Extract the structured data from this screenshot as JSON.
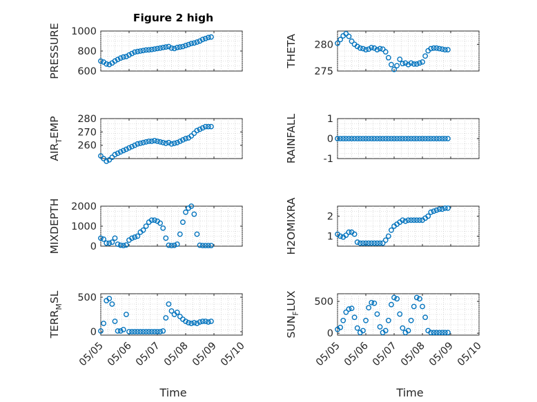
{
  "figure": {
    "title": "Figure 2 high",
    "x_axis_label": "Time"
  },
  "colors": {
    "marker": "#0072BD",
    "axes": "#262626",
    "grid": "#bdbdbd"
  },
  "chart_data": [
    {
      "id": "pressure",
      "type": "scatter",
      "ylabel": "PRESSURE",
      "ylim": [
        600,
        1000
      ],
      "yticks": [
        600,
        800,
        1000
      ],
      "ytick_labels": [
        "600",
        "800",
        "1000"
      ],
      "xlim": [
        0,
        5
      ],
      "xticks": [
        0,
        1,
        2,
        3,
        4,
        5
      ],
      "xtick_labels": [],
      "grid": true,
      "marker": "circle-open",
      "x": [
        0.0,
        0.1,
        0.2,
        0.3,
        0.4,
        0.5,
        0.6,
        0.7,
        0.8,
        0.9,
        1.0,
        1.1,
        1.2,
        1.3,
        1.4,
        1.5,
        1.6,
        1.7,
        1.8,
        1.9,
        2.0,
        2.1,
        2.2,
        2.3,
        2.4,
        2.5,
        2.6,
        2.7,
        2.8,
        2.9,
        3.0,
        3.1,
        3.2,
        3.3,
        3.4,
        3.5,
        3.6,
        3.7,
        3.8,
        3.9
      ],
      "y": [
        700,
        690,
        670,
        665,
        680,
        700,
        715,
        730,
        740,
        745,
        760,
        775,
        790,
        795,
        800,
        805,
        810,
        812,
        815,
        820,
        825,
        830,
        835,
        840,
        845,
        830,
        825,
        835,
        840,
        845,
        855,
        865,
        875,
        880,
        890,
        900,
        915,
        925,
        935,
        940
      ]
    },
    {
      "id": "theta",
      "type": "scatter",
      "ylabel": "THETA",
      "ylim": [
        275,
        282.5
      ],
      "yticks": [
        275,
        280
      ],
      "ytick_labels": [
        "275",
        "280"
      ],
      "xlim": [
        0,
        5
      ],
      "xticks": [
        0,
        1,
        2,
        3,
        4,
        5
      ],
      "xtick_labels": [],
      "grid": true,
      "marker": "circle-open",
      "x": [
        0.0,
        0.1,
        0.2,
        0.3,
        0.4,
        0.5,
        0.6,
        0.7,
        0.8,
        0.9,
        1.0,
        1.1,
        1.2,
        1.3,
        1.4,
        1.5,
        1.6,
        1.7,
        1.8,
        1.9,
        2.0,
        2.1,
        2.2,
        2.3,
        2.4,
        2.5,
        2.6,
        2.7,
        2.8,
        2.9,
        3.0,
        3.1,
        3.2,
        3.3,
        3.4,
        3.5,
        3.6,
        3.7,
        3.8,
        3.9
      ],
      "y": [
        280.2,
        280.9,
        281.6,
        282.0,
        281.5,
        280.6,
        280.0,
        279.6,
        279.3,
        279.2,
        279.0,
        279.1,
        279.4,
        279.3,
        279.0,
        279.2,
        279.1,
        278.6,
        277.5,
        276.2,
        275.3,
        276.0,
        277.2,
        276.4,
        276.5,
        276.2,
        276.5,
        276.3,
        276.3,
        276.5,
        276.7,
        277.8,
        278.8,
        279.2,
        279.3,
        279.3,
        279.2,
        279.1,
        279.0,
        279.0
      ]
    },
    {
      "id": "air_temp",
      "type": "scatter",
      "ylabel_parts": [
        "AIR",
        "T",
        "EMP"
      ],
      "ylim": [
        250,
        280
      ],
      "yticks": [
        260,
        270,
        280
      ],
      "ytick_labels": [
        "260",
        "270",
        "280"
      ],
      "xlim": [
        0,
        5
      ],
      "xticks": [
        0,
        1,
        2,
        3,
        4,
        5
      ],
      "xtick_labels": [],
      "grid": true,
      "marker": "circle-open",
      "x": [
        0.0,
        0.1,
        0.2,
        0.3,
        0.4,
        0.5,
        0.6,
        0.7,
        0.8,
        0.9,
        1.0,
        1.1,
        1.2,
        1.3,
        1.4,
        1.5,
        1.6,
        1.7,
        1.8,
        1.9,
        2.0,
        2.1,
        2.2,
        2.3,
        2.4,
        2.5,
        2.6,
        2.7,
        2.8,
        2.9,
        3.0,
        3.1,
        3.2,
        3.3,
        3.4,
        3.5,
        3.6,
        3.7,
        3.8,
        3.9
      ],
      "y": [
        252,
        250,
        248,
        249,
        251,
        253,
        254,
        255,
        256,
        257,
        258,
        259,
        260,
        261,
        261.5,
        262,
        262.5,
        263,
        263,
        263.5,
        263,
        262.5,
        262,
        261.5,
        262,
        261,
        261.5,
        262,
        263,
        264,
        265,
        265.5,
        267,
        269,
        271,
        272,
        273,
        274,
        274,
        274
      ]
    },
    {
      "id": "rainfall",
      "type": "scatter",
      "ylabel": "RAINFALL",
      "ylim": [
        -1,
        1
      ],
      "yticks": [
        -1,
        0,
        1
      ],
      "ytick_labels": [
        "-1",
        "0",
        "1"
      ],
      "xlim": [
        0,
        5
      ],
      "xticks": [
        0,
        1,
        2,
        3,
        4,
        5
      ],
      "xtick_labels": [],
      "grid": true,
      "marker": "circle-open",
      "x": [
        0.0,
        0.1,
        0.2,
        0.3,
        0.4,
        0.5,
        0.6,
        0.7,
        0.8,
        0.9,
        1.0,
        1.1,
        1.2,
        1.3,
        1.4,
        1.5,
        1.6,
        1.7,
        1.8,
        1.9,
        2.0,
        2.1,
        2.2,
        2.3,
        2.4,
        2.5,
        2.6,
        2.7,
        2.8,
        2.9,
        3.0,
        3.1,
        3.2,
        3.3,
        3.4,
        3.5,
        3.6,
        3.7,
        3.8,
        3.9
      ],
      "y": [
        0,
        0,
        0,
        0,
        0,
        0,
        0,
        0,
        0,
        0,
        0,
        0,
        0,
        0,
        0,
        0,
        0,
        0,
        0,
        0,
        0,
        0,
        0,
        0,
        0,
        0,
        0,
        0,
        0,
        0,
        0,
        0,
        0,
        0,
        0,
        0,
        0,
        0,
        0,
        0
      ]
    },
    {
      "id": "mixdepth",
      "type": "scatter",
      "ylabel": "MIXDEPTH",
      "ylim": [
        0,
        2000
      ],
      "yticks": [
        0,
        1000,
        2000
      ],
      "ytick_labels": [
        "0",
        "1000",
        "2000"
      ],
      "xlim": [
        0,
        5
      ],
      "xticks": [
        0,
        1,
        2,
        3,
        4,
        5
      ],
      "xtick_labels": [],
      "grid": true,
      "marker": "circle-open",
      "x": [
        0.0,
        0.1,
        0.2,
        0.3,
        0.4,
        0.5,
        0.6,
        0.7,
        0.8,
        0.9,
        1.0,
        1.1,
        1.2,
        1.3,
        1.4,
        1.5,
        1.6,
        1.7,
        1.8,
        1.9,
        2.0,
        2.1,
        2.2,
        2.3,
        2.4,
        2.5,
        2.6,
        2.7,
        2.8,
        2.9,
        3.0,
        3.1,
        3.2,
        3.3,
        3.4,
        3.5,
        3.6,
        3.7,
        3.8,
        3.9
      ],
      "y": [
        400,
        350,
        150,
        150,
        200,
        400,
        100,
        50,
        30,
        60,
        300,
        400,
        450,
        500,
        700,
        800,
        1000,
        1200,
        1300,
        1300,
        1250,
        1150,
        900,
        400,
        50,
        30,
        40,
        100,
        600,
        1200,
        1700,
        1900,
        2000,
        1600,
        600,
        50,
        30,
        30,
        30,
        30
      ]
    },
    {
      "id": "h2omixra",
      "type": "scatter",
      "ylabel": "H2OMIXRA",
      "ylim": [
        0.5,
        2.5
      ],
      "yticks": [
        1,
        2
      ],
      "ytick_labels": [
        "1",
        "2"
      ],
      "xlim": [
        0,
        5
      ],
      "xticks": [
        0,
        1,
        2,
        3,
        4,
        5
      ],
      "xtick_labels": [],
      "grid": true,
      "marker": "circle-open",
      "x": [
        0.0,
        0.1,
        0.2,
        0.3,
        0.4,
        0.5,
        0.6,
        0.7,
        0.8,
        0.9,
        1.0,
        1.1,
        1.2,
        1.3,
        1.4,
        1.5,
        1.6,
        1.7,
        1.8,
        1.9,
        2.0,
        2.1,
        2.2,
        2.3,
        2.4,
        2.5,
        2.6,
        2.7,
        2.8,
        2.9,
        3.0,
        3.1,
        3.2,
        3.3,
        3.4,
        3.5,
        3.6,
        3.7,
        3.8,
        3.9
      ],
      "y": [
        1.1,
        1.0,
        0.95,
        1.05,
        1.2,
        1.2,
        1.1,
        0.7,
        0.65,
        0.65,
        0.65,
        0.65,
        0.65,
        0.65,
        0.65,
        0.65,
        0.65,
        0.8,
        1.0,
        1.3,
        1.5,
        1.6,
        1.7,
        1.8,
        1.75,
        1.8,
        1.8,
        1.8,
        1.8,
        1.8,
        1.8,
        1.9,
        2.0,
        2.2,
        2.25,
        2.3,
        2.35,
        2.35,
        2.4,
        2.4
      ]
    },
    {
      "id": "terr_msl",
      "type": "scatter",
      "ylabel_parts": [
        "TERR",
        "M",
        "SL"
      ],
      "ylim": [
        -50,
        550
      ],
      "yticks": [
        0,
        500
      ],
      "ytick_labels": [
        "0",
        "500"
      ],
      "xlim": [
        0,
        5
      ],
      "xticks": [
        0,
        1,
        2,
        3,
        4,
        5
      ],
      "xtick_labels": [
        "05/05",
        "05/06",
        "05/07",
        "05/08",
        "05/09",
        "05/10"
      ],
      "grid": true,
      "marker": "circle-open",
      "x": [
        0.0,
        0.1,
        0.2,
        0.3,
        0.4,
        0.5,
        0.6,
        0.7,
        0.8,
        0.9,
        1.0,
        1.1,
        1.2,
        1.3,
        1.4,
        1.5,
        1.6,
        1.7,
        1.8,
        1.9,
        2.0,
        2.1,
        2.2,
        2.3,
        2.4,
        2.5,
        2.6,
        2.7,
        2.8,
        2.9,
        3.0,
        3.1,
        3.2,
        3.3,
        3.4,
        3.5,
        3.6,
        3.7,
        3.8,
        3.9
      ],
      "y": [
        10,
        120,
        450,
        480,
        400,
        150,
        10,
        10,
        30,
        250,
        0,
        0,
        0,
        0,
        0,
        0,
        0,
        0,
        0,
        0,
        0,
        0,
        10,
        200,
        400,
        300,
        250,
        280,
        220,
        180,
        150,
        130,
        120,
        130,
        120,
        140,
        150,
        150,
        140,
        150
      ]
    },
    {
      "id": "sun_flux",
      "type": "scatter",
      "ylabel_parts": [
        "SUN",
        "F",
        "LUX"
      ],
      "ylim": [
        -30,
        620
      ],
      "yticks": [
        0,
        500
      ],
      "ytick_labels": [
        "0",
        "500"
      ],
      "xlim": [
        0,
        5
      ],
      "xticks": [
        0,
        1,
        2,
        3,
        4,
        5
      ],
      "xtick_labels": [
        "05/05",
        "05/06",
        "05/07",
        "05/08",
        "05/09",
        "05/10"
      ],
      "grid": true,
      "marker": "circle-open",
      "x": [
        0.0,
        0.1,
        0.2,
        0.3,
        0.4,
        0.5,
        0.6,
        0.7,
        0.8,
        0.9,
        1.0,
        1.1,
        1.2,
        1.3,
        1.4,
        1.5,
        1.6,
        1.7,
        1.8,
        1.9,
        2.0,
        2.1,
        2.2,
        2.3,
        2.4,
        2.5,
        2.6,
        2.7,
        2.8,
        2.9,
        3.0,
        3.1,
        3.2,
        3.3,
        3.4,
        3.5,
        3.6,
        3.7,
        3.8,
        3.9
      ],
      "y": [
        60,
        90,
        200,
        330,
        380,
        390,
        250,
        80,
        10,
        40,
        200,
        400,
        480,
        470,
        300,
        100,
        10,
        40,
        200,
        450,
        560,
        540,
        300,
        80,
        10,
        40,
        200,
        420,
        560,
        540,
        420,
        250,
        40,
        10,
        10,
        10,
        10,
        10,
        10,
        10
      ]
    }
  ]
}
